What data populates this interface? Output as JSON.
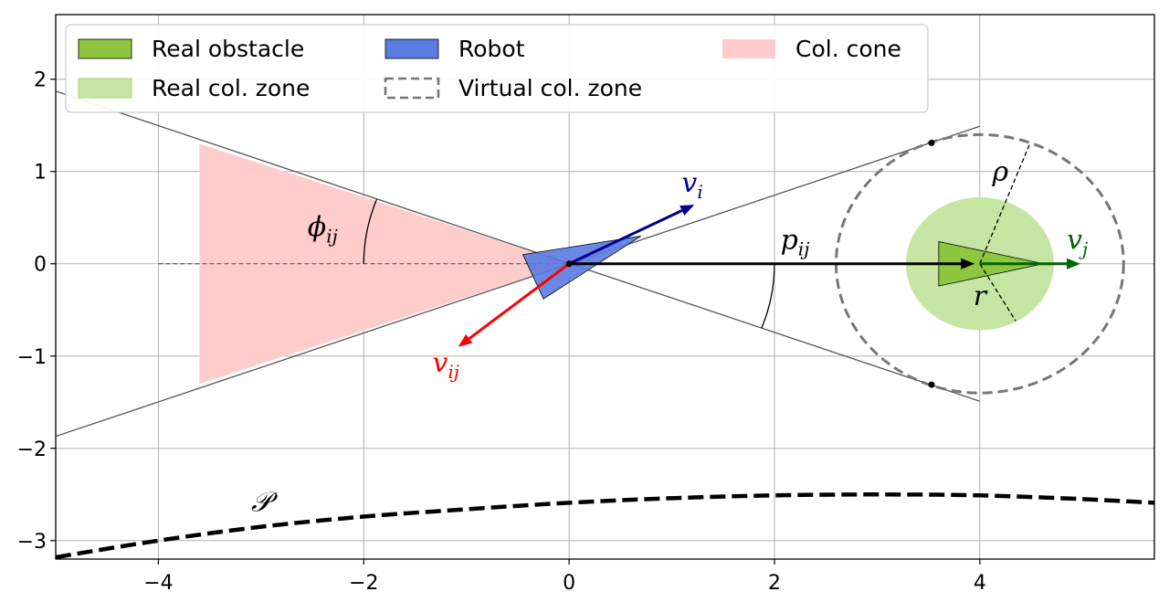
{
  "chart_data": {
    "type": "diagram",
    "title": "",
    "xlabel": "",
    "ylabel": "",
    "xlim": [
      -5,
      5.7
    ],
    "ylim": [
      -3.2,
      2.7
    ],
    "grid": true,
    "x_ticks": [
      -4,
      -2,
      0,
      2,
      4
    ],
    "y_ticks": [
      -3,
      -2,
      -1,
      0,
      1,
      2
    ],
    "x_tick_labels": [
      "−4",
      "−2",
      "0",
      "2",
      "4"
    ],
    "y_tick_labels": [
      "−3",
      "−2",
      "−1",
      "0",
      "1",
      "2"
    ],
    "legend": {
      "placement": "upper-left",
      "entries": [
        {
          "label": "Real obstacle",
          "style": "patch",
          "fill": "#8ec63f",
          "edge": "#000000"
        },
        {
          "label": "Robot",
          "style": "patch",
          "fill": "#5a7be0",
          "edge": "#000000"
        },
        {
          "label": "Col. cone",
          "style": "patch",
          "fill": "#ffcccc",
          "edge": "none"
        },
        {
          "label": "Real col. zone",
          "style": "patch",
          "fill": "#c5e5a2",
          "edge": "#b5dd88"
        },
        {
          "label": "Virtual col. zone",
          "style": "dashed-box",
          "fill": "none",
          "edge": "#777777"
        }
      ]
    },
    "colors": {
      "cone": "#ffcccc",
      "robot": "#5a7be0",
      "obstacle": "#8ec63f",
      "real_zone": "#c5e5a2",
      "virtual_zone": "#777777",
      "v_i": "#00008b",
      "v_ij": "#ff0000",
      "v_j": "#006400",
      "p_ij": "#000000",
      "path": "#000000",
      "tangent_lines": "#555555",
      "grid": "#b0b0b0"
    },
    "robot": {
      "position": [
        0,
        0
      ],
      "triangle": [
        [
          0.7,
          0.3
        ],
        [
          -0.25,
          -0.38
        ],
        [
          -0.45,
          0.1
        ]
      ]
    },
    "obstacle": {
      "position": [
        4,
        0
      ],
      "triangle": [
        [
          3.6,
          0.24
        ],
        [
          3.6,
          -0.24
        ],
        [
          4.62,
          0
        ]
      ]
    },
    "real_collision_zone": {
      "center": [
        4,
        0
      ],
      "radius": 0.72
    },
    "virtual_collision_zone": {
      "center": [
        4,
        0
      ],
      "radius": 1.4
    },
    "collision_cone": {
      "apex": [
        0,
        0
      ],
      "polygon": [
        [
          0,
          0
        ],
        [
          -3.6,
          1.3
        ],
        [
          -3.6,
          -1.3
        ]
      ]
    },
    "tangent_lines": [
      {
        "from": [
          -5,
          -1.87
        ],
        "to": [
          4,
          1.49
        ]
      },
      {
        "from": [
          -5,
          1.87
        ],
        "to": [
          4,
          -1.49
        ]
      }
    ],
    "tangent_points": [
      [
        3.53,
        1.31
      ],
      [
        3.53,
        -1.31
      ]
    ],
    "cone_axis": {
      "from": [
        -4,
        0
      ],
      "to": [
        0,
        0
      ],
      "style": "dashed"
    },
    "vectors": [
      {
        "name": "v_i",
        "label": "v",
        "subscript": "i",
        "from": [
          0,
          0
        ],
        "to": [
          1.22,
          0.64
        ]
      },
      {
        "name": "v_ij",
        "label": "v",
        "subscript": "ij",
        "from": [
          0,
          0
        ],
        "to": [
          -1.08,
          -0.9
        ]
      },
      {
        "name": "p_ij",
        "label": "p",
        "subscript": "ij",
        "from": [
          0,
          0
        ],
        "to": [
          3.95,
          0
        ]
      },
      {
        "name": "v_j",
        "label": "v",
        "subscript": "j",
        "from": [
          4,
          0
        ],
        "to": [
          4.98,
          0
        ]
      }
    ],
    "radius_labels": [
      {
        "name": "rho",
        "label": "ρ",
        "from": [
          4,
          0
        ],
        "to": [
          4.49,
          1.31
        ]
      },
      {
        "name": "r",
        "label": "r",
        "from": [
          4,
          0
        ],
        "to": [
          4.35,
          -0.62
        ]
      }
    ],
    "angle_labels": [
      {
        "name": "phi_ij",
        "label": "ϕ",
        "subscript": "ij",
        "at": [
          -2.3,
          0.38
        ]
      }
    ],
    "path": {
      "label": "𝒫",
      "style": "dashed",
      "points": [
        [
          -5,
          -3.18
        ],
        [
          -4,
          -3.0
        ],
        [
          -3,
          -2.85
        ],
        [
          -2,
          -2.74
        ],
        [
          -1,
          -2.66
        ],
        [
          0,
          -2.59
        ],
        [
          1,
          -2.54
        ],
        [
          2,
          -2.51
        ],
        [
          3,
          -2.5
        ],
        [
          4,
          -2.51
        ],
        [
          5,
          -2.55
        ],
        [
          5.7,
          -2.59
        ]
      ]
    }
  }
}
